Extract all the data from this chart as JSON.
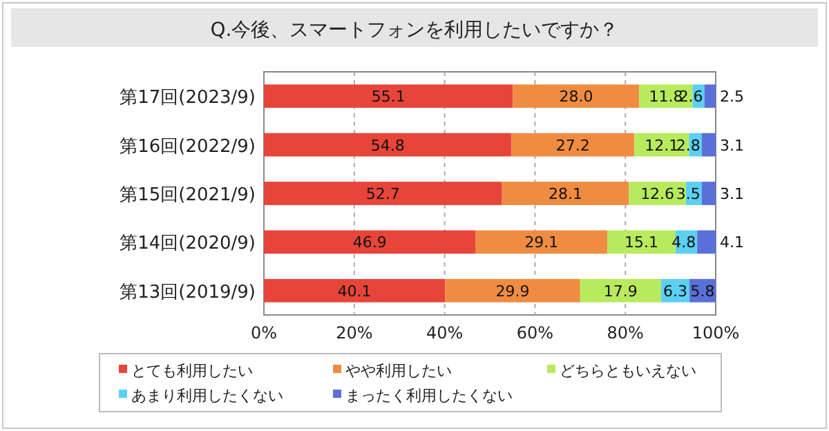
{
  "chart_data": {
    "type": "bar",
    "orientation": "horizontal",
    "stacked": true,
    "title": "Q.今後、スマートフォンを利用したいですか？",
    "categories": [
      "第17回(2023/9)",
      "第16回(2022/9)",
      "第15回(2021/9)",
      "第14回(2020/9)",
      "第13回(2019/9)"
    ],
    "series": [
      {
        "name": "とても利用したい",
        "color": "#e8453a",
        "values": [
          55.1,
          54.8,
          52.7,
          46.9,
          40.1
        ],
        "value_labels": [
          "55.1",
          "54.8",
          "52.7",
          "46.9",
          "40.1"
        ]
      },
      {
        "name": "やや利用したい",
        "color": "#f08c42",
        "values": [
          28.0,
          27.2,
          28.1,
          29.1,
          29.9
        ],
        "value_labels": [
          "28.0",
          "27.2",
          "28.1",
          "29.1",
          "29.9"
        ]
      },
      {
        "name": "どちらともいえない",
        "color": "#b8ea5e",
        "values": [
          11.8,
          12.1,
          12.6,
          15.1,
          17.9
        ],
        "value_labels": [
          "11.8",
          "12.1",
          "12.6",
          "15.1",
          "17.9"
        ]
      },
      {
        "name": "あまり利用したくない",
        "color": "#5cd0f2",
        "values": [
          2.6,
          2.8,
          3.5,
          4.8,
          6.3
        ],
        "value_labels": [
          "2.6",
          "2.8",
          "3.5",
          "4.8",
          "6.3"
        ]
      },
      {
        "name": "まったく利用したくない",
        "color": "#5a70d8",
        "values": [
          2.5,
          3.1,
          3.1,
          4.1,
          5.8
        ],
        "value_labels": [
          "2.5",
          "3.1",
          "3.1",
          "4.1",
          "5.8"
        ]
      }
    ],
    "xlim": [
      0,
      100
    ],
    "xticks": [
      {
        "value": 0,
        "label": "0%"
      },
      {
        "value": 20,
        "label": "20%"
      },
      {
        "value": 40,
        "label": "40%"
      },
      {
        "value": 60,
        "label": "60%"
      },
      {
        "value": 80,
        "label": "80%"
      },
      {
        "value": 100,
        "label": "100%"
      }
    ],
    "grid": "x",
    "legend": "bottom"
  }
}
